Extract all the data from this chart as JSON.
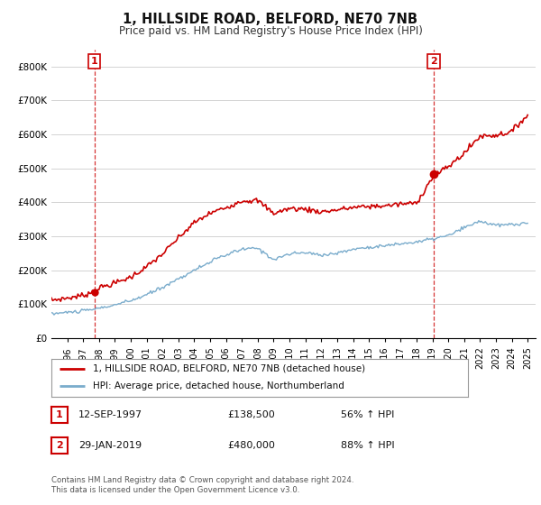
{
  "title": "1, HILLSIDE ROAD, BELFORD, NE70 7NB",
  "subtitle": "Price paid vs. HM Land Registry's House Price Index (HPI)",
  "legend_line1": "1, HILLSIDE ROAD, BELFORD, NE70 7NB (detached house)",
  "legend_line2": "HPI: Average price, detached house, Northumberland",
  "transaction1_date": "12-SEP-1997",
  "transaction1_price": "£138,500",
  "transaction1_hpi": "56% ↑ HPI",
  "transaction2_date": "29-JAN-2019",
  "transaction2_price": "£480,000",
  "transaction2_hpi": "88% ↑ HPI",
  "footnote1": "Contains HM Land Registry data © Crown copyright and database right 2024.",
  "footnote2": "This data is licensed under the Open Government Licence v3.0.",
  "red_line_color": "#cc0000",
  "blue_line_color": "#7aaccc",
  "vline_color": "#cc0000",
  "grid_color": "#cccccc",
  "background_color": "#ffffff",
  "ylim": [
    0,
    850000
  ],
  "yticks": [
    0,
    100000,
    200000,
    300000,
    400000,
    500000,
    600000,
    700000,
    800000
  ],
  "ytick_labels": [
    "£0",
    "£100K",
    "£200K",
    "£300K",
    "£400K",
    "£500K",
    "£600K",
    "£700K",
    "£800K"
  ],
  "transaction1_year": 1997.7,
  "transaction2_year": 2019.08
}
